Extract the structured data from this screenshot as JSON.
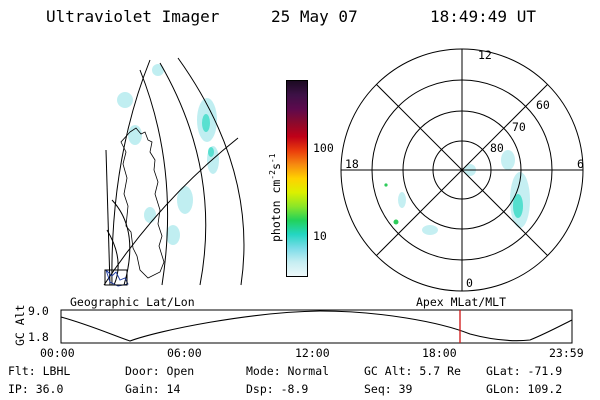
{
  "header": {
    "title": "Ultraviolet Imager",
    "date": "25 May 07",
    "time": "18:49:49 UT"
  },
  "colorbar": {
    "label_text": "photon cm",
    "exponent1": "-2",
    "mid": "s",
    "exponent2": "-1",
    "ticks": [
      "100",
      "10"
    ],
    "colors": [
      "#1c0a22",
      "#3d1146",
      "#5d0a4d",
      "#8b0a2c",
      "#c00018",
      "#ea3c0c",
      "#f68a10",
      "#ffd200",
      "#dcf000",
      "#8ce628",
      "#22d25a",
      "#23d6c2",
      "#7adce8",
      "#c6eef2",
      "#eef8fa"
    ]
  },
  "polar": {
    "lat_labels": [
      "60",
      "70",
      "80"
    ],
    "mlt_labels": {
      "top": "12",
      "bottom": "0",
      "left": "18",
      "right": "6"
    }
  },
  "labels": {
    "geographic": "Geographic Lat/Lon",
    "apex": "Apex MLat/MLT"
  },
  "timeline": {
    "ylabel": "GC Alt",
    "ymax": "9.0",
    "ymin": "1.8",
    "ticks": [
      "00:00",
      "06:00",
      "12:00",
      "18:00",
      "23:59"
    ],
    "marker_color": "#d01414"
  },
  "info": {
    "filter": "Flt: LBHL",
    "ip": "IP: 36.0",
    "door": "Door: Open",
    "gain": "Gain: 14",
    "mode": "Mode: Normal",
    "dsp": "Dsp:   -8.9",
    "gc_alt": "GC Alt: 5.7 Re",
    "seq": "Seq: 39",
    "glat": "GLat: -71.9",
    "glon": "GLon: 109.2"
  }
}
